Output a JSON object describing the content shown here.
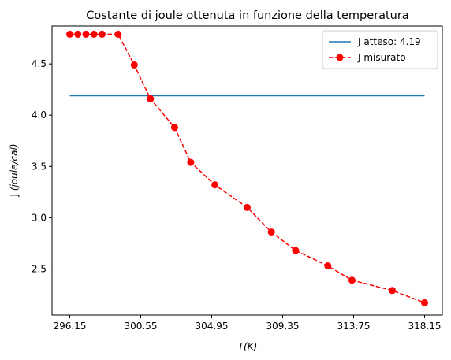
{
  "chart_data": {
    "type": "line",
    "title": "Costante di joule ottenuta in funzione della temperatura",
    "xlabel": "T(K)",
    "ylabel": "J (joule/cal)",
    "xlim": [
      295.05,
      319.25
    ],
    "ylim": [
      2.05,
      4.87
    ],
    "x_ticks": [
      "296.15",
      "300.55",
      "304.95",
      "309.35",
      "313.75",
      "318.15"
    ],
    "y_ticks": [
      "2.5",
      "3.0",
      "3.5",
      "4.0",
      "4.5"
    ],
    "grid": false,
    "legend_position": "top-right",
    "series": [
      {
        "name": "J atteso: 4.19",
        "style": "solid",
        "color": "#1f77b4",
        "x": [
          296.15,
          318.15
        ],
        "y": [
          4.19,
          4.19
        ]
      },
      {
        "name": "J misurato",
        "style": "dashed-circle-markers",
        "color": "#ff0000",
        "x": [
          296.15,
          296.65,
          297.15,
          297.65,
          298.15,
          299.15,
          300.15,
          301.15,
          302.65,
          303.65,
          305.15,
          307.15,
          308.65,
          310.15,
          312.15,
          313.65,
          316.15,
          318.15
        ],
        "y": [
          4.79,
          4.79,
          4.79,
          4.79,
          4.79,
          4.79,
          4.49,
          4.16,
          3.88,
          3.54,
          3.32,
          3.1,
          2.86,
          2.68,
          2.53,
          2.39,
          2.29,
          2.17
        ]
      }
    ]
  }
}
